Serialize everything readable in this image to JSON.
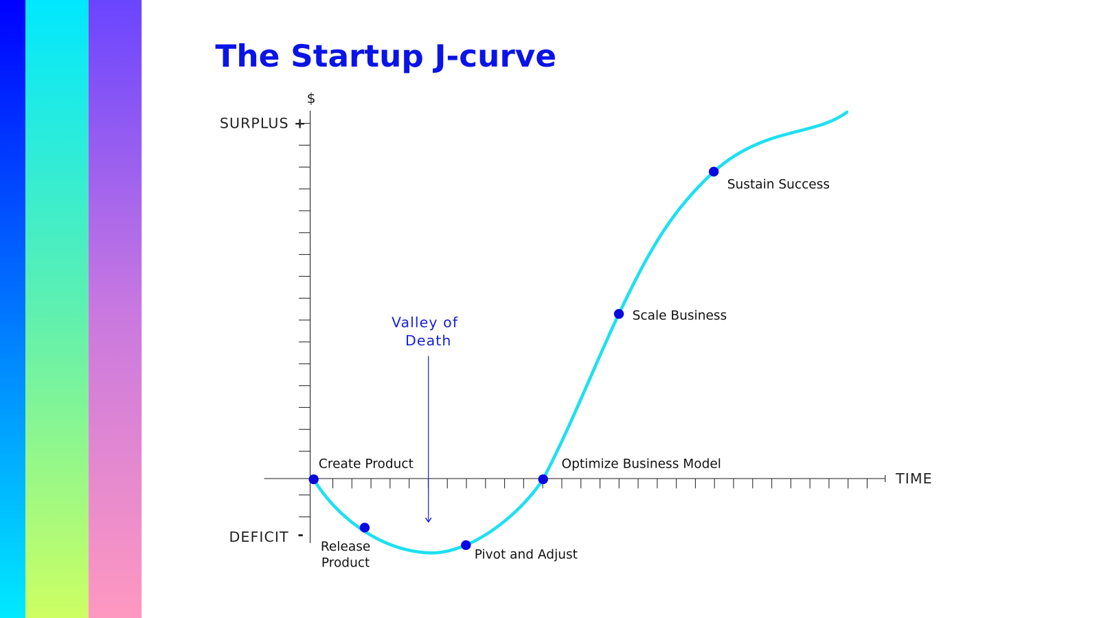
{
  "header": {
    "title": "The Startup J-curve"
  },
  "axes": {
    "y_label": "$",
    "y_top": "SURPLUS",
    "y_top_sign": "+",
    "y_bottom": "DEFICIT",
    "y_bottom_sign": "-",
    "x_label": "TIME"
  },
  "annotation": {
    "lines": [
      "Valley of",
      "Death"
    ]
  },
  "nodes": [
    {
      "lines": [
        "Create Product"
      ]
    },
    {
      "lines": [
        "Release",
        "Product"
      ]
    },
    {
      "lines": [
        "Pivot and Adjust"
      ]
    },
    {
      "lines": [
        "Optimize Business Model"
      ]
    },
    {
      "lines": [
        "Scale Business"
      ]
    },
    {
      "lines": [
        "Sustain Success"
      ]
    }
  ]
}
